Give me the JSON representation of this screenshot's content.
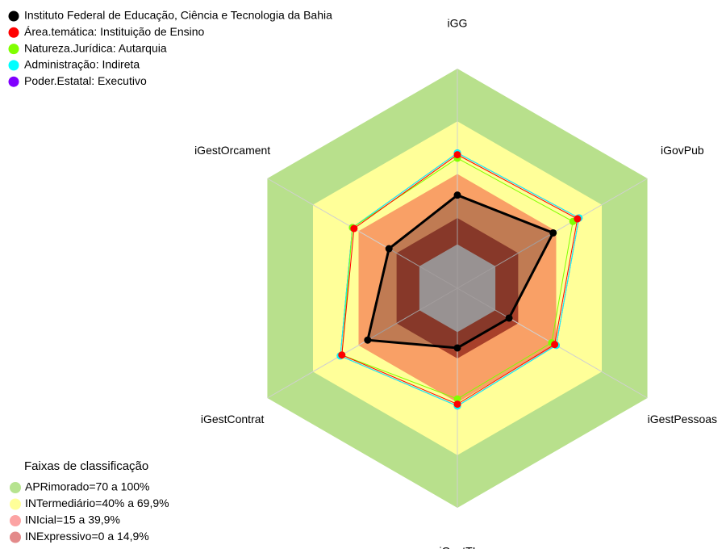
{
  "chart_data": {
    "type": "radar",
    "axes": [
      "iGG",
      "iGovPub",
      "iGestPessoas",
      "iGestTI",
      "iGestContrat",
      "iGestOrcament"
    ],
    "ylim": [
      -25,
      100
    ],
    "series": [
      {
        "name": "Instituto Federal de Educação, Ciência e Tecnologia da Bahia",
        "color": "#000000",
        "values": [
          28,
          38,
          9,
          9,
          34,
          20
        ]
      },
      {
        "name": "Área.temática: Instituição de Ensino",
        "color": "#ff0000",
        "values": [
          51,
          54,
          39,
          41,
          51,
          43
        ]
      },
      {
        "name": "Natureza.Jurídica: Autarquia",
        "color": "#80ff00",
        "values": [
          49,
          51,
          37,
          38,
          51,
          44
        ]
      },
      {
        "name": "Administração: Indireta",
        "color": "#00ffff",
        "values": [
          52,
          55,
          40,
          42,
          52,
          44
        ]
      },
      {
        "name": "Poder.Estatal: Executivo",
        "color": "#8000ff",
        "values": [
          52,
          55,
          40,
          42,
          52,
          44
        ]
      }
    ],
    "bands_title": "Faixas de classificação",
    "bands": [
      {
        "label": "APRimorado=70 a 100%",
        "color": "#b8e08c",
        "legend_color": "#b6e38f",
        "from": 70,
        "to": 100
      },
      {
        "label": "INTermediário=40% a 69,9%",
        "color": "#ffff99",
        "legend_color": "#ffff99",
        "from": 40,
        "to": 70
      },
      {
        "label": "INIcial=15 a 39,9%",
        "color": "#f9a066",
        "legend_color": "#fca3a3",
        "from": 15,
        "to": 40
      },
      {
        "label": "INExpressivo=0 a 14,9%",
        "color": "#a8402a",
        "legend_color": "#e38a8a",
        "from": 0,
        "to": 15
      }
    ]
  }
}
